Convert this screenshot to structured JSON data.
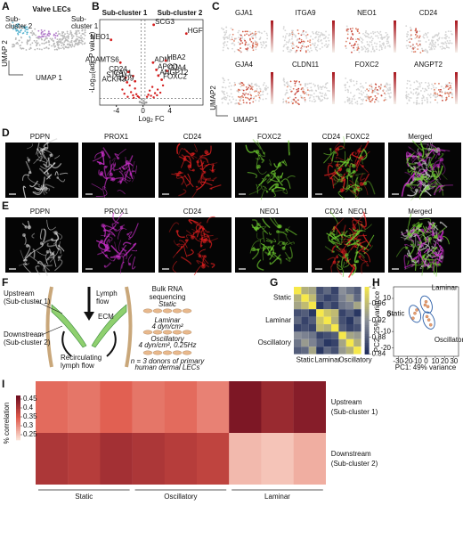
{
  "letters": [
    "A",
    "B",
    "C",
    "D",
    "E",
    "F",
    "G",
    "H",
    "I"
  ],
  "A": {
    "title": "Valve LECs",
    "sub2": [
      "Sub-",
      "cluster 2"
    ],
    "sub1": [
      "Sub-",
      "cluster 1"
    ],
    "xlabel": "UMAP 1",
    "ylabel": "UMAP 2"
  },
  "B": {
    "left_title": "Sub-cluster 1",
    "right_title": "Sub-cluster 2",
    "ylabel": [
      "-Log",
      "10",
      "(adj. P value)"
    ],
    "xlabel": [
      "Log",
      "2",
      " FC"
    ],
    "xlim": [
      -6.5,
      9
    ],
    "ylim": [
      0,
      16.5
    ],
    "xticks": [
      -4,
      0,
      4
    ],
    "threshold_x": [
      -0.3,
      0.3
    ],
    "threshold_y": 1.3,
    "genes": [
      {
        "name": "NEO1",
        "x": -4.8,
        "y": 12.6
      },
      {
        "name": "ADAMTS6",
        "x": -3.4,
        "y": 8.2
      },
      {
        "name": "CD24",
        "x": -2.2,
        "y": 6.4
      },
      {
        "name": "CAV1",
        "x": -1.5,
        "y": 5.6
      },
      {
        "name": "STC1",
        "x": -2.6,
        "y": 5.3
      },
      {
        "name": "ACKR3",
        "x": -2.4,
        "y": 4.4
      },
      {
        "name": "CD9",
        "x": -1.2,
        "y": 4.6
      },
      {
        "name": "SCG3",
        "x": 1.6,
        "y": 15.5
      },
      {
        "name": "HGF",
        "x": 6.5,
        "y": 13.8
      },
      {
        "name": "ADM",
        "x": 1.5,
        "y": 8.2
      },
      {
        "name": "HBA2",
        "x": 3.4,
        "y": 8.6
      },
      {
        "name": "APOD",
        "x": 2.0,
        "y": 6.8
      },
      {
        "name": "GJA4",
        "x": 3.6,
        "y": 6.6
      },
      {
        "name": "ANGPT2",
        "x": 2.3,
        "y": 5.7
      },
      {
        "name": "FOXC2",
        "x": 2.8,
        "y": 4.9
      }
    ],
    "points": {
      "x": [
        -3.1,
        -2.8,
        -2,
        -1.8,
        -1.5,
        -1.2,
        -1,
        -0.8,
        -0.6,
        0.6,
        0.8,
        1,
        1.2,
        1.4,
        1.8,
        2.2,
        2.6,
        3,
        -0.5,
        0.5,
        -1.4,
        1.6,
        -2.3,
        2.1,
        -0.1,
        0.1,
        -0.2,
        0.2
      ],
      "y": [
        3,
        2.2,
        3.8,
        2.5,
        1.9,
        3.2,
        2.1,
        1.7,
        1.5,
        1.6,
        2,
        2.8,
        1.8,
        3.5,
        2.3,
        3,
        2.4,
        3.8,
        0.6,
        0.5,
        1.4,
        1.5,
        1.6,
        1.9,
        0.4,
        0.8,
        1.1,
        0.3
      ]
    }
  },
  "C": {
    "genes": [
      "GJA1",
      "ITGA9",
      "NEO1",
      "CD24",
      "GJA4",
      "CLDN11",
      "FOXC2",
      "ANGPT2"
    ],
    "ylabel": "UMAP2",
    "xlabel": "UMAP1"
  },
  "D": {
    "labels": [
      [
        {
          "text": "PDPN",
          "color": "#aaaaaa"
        }
      ],
      [
        {
          "text": "PROX1",
          "color": "#d030d0"
        }
      ],
      [
        {
          "text": "CD24",
          "color": "#e01818"
        }
      ],
      [
        {
          "text": "FOXC2",
          "color": "#6cc02a"
        }
      ],
      [
        {
          "text": "CD24",
          "color": "#e01818"
        },
        {
          "text": "FOXC2",
          "color": "#6cc02a"
        }
      ],
      [
        {
          "text": "Merged",
          "color": "#333333"
        }
      ]
    ]
  },
  "E": {
    "labels": [
      [
        {
          "text": "PDPN",
          "color": "#aaaaaa"
        }
      ],
      [
        {
          "text": "PROX1",
          "color": "#d030d0"
        }
      ],
      [
        {
          "text": "CD24",
          "color": "#e01818"
        }
      ],
      [
        {
          "text": "NEO1",
          "color": "#6cc02a"
        }
      ],
      [
        {
          "text": "CD24",
          "color": "#e01818"
        },
        {
          "text": "NEO1",
          "color": "#6cc02a"
        }
      ],
      [
        {
          "text": "Merged",
          "color": "#333333"
        }
      ]
    ]
  },
  "F": {
    "upstream": [
      "Upstream",
      "(Sub-cluster 1)"
    ],
    "lymph": [
      "Lymph",
      "flow"
    ],
    "ecm": "ECM",
    "downstream": [
      "Downstream",
      "(Sub-cluster 2)"
    ],
    "recirc": [
      "Recirculating",
      "lymph flow"
    ],
    "bulk": [
      "Bulk RNA",
      "sequencing"
    ],
    "static": "Static",
    "laminar": [
      "Laminar",
      "4 dyn/cm²"
    ],
    "oscillatory": [
      "Oscillatory",
      "4 dyn/cm², 0.25Hz"
    ],
    "donors": [
      "n = 3 donors of primary",
      "human dermal LECs"
    ]
  },
  "G": {
    "labels": [
      "Static",
      "Laminar",
      "Oscillatory"
    ],
    "clim": [
      0.84,
      1
    ],
    "cticks": [
      1,
      0.96,
      0.92,
      0.88,
      0.84
    ],
    "values": [
      [
        1,
        0.95,
        0.94,
        0.87,
        0.89,
        0.86,
        0.92,
        0.9,
        0.88
      ],
      [
        0.95,
        1,
        0.96,
        0.88,
        0.86,
        0.87,
        0.91,
        0.93,
        0.89
      ],
      [
        0.94,
        0.96,
        1,
        0.85,
        0.88,
        0.86,
        0.9,
        0.91,
        0.94
      ],
      [
        0.87,
        0.88,
        0.85,
        1,
        0.97,
        0.96,
        0.86,
        0.88,
        0.85
      ],
      [
        0.89,
        0.86,
        0.88,
        0.97,
        1,
        0.95,
        0.87,
        0.85,
        0.89
      ],
      [
        0.86,
        0.87,
        0.86,
        0.96,
        0.95,
        1,
        0.88,
        0.86,
        0.87
      ],
      [
        0.92,
        0.91,
        0.9,
        0.86,
        0.87,
        0.88,
        1,
        0.94,
        0.93
      ],
      [
        0.9,
        0.93,
        0.91,
        0.88,
        0.85,
        0.86,
        0.94,
        1,
        0.95
      ],
      [
        0.88,
        0.89,
        0.94,
        0.85,
        0.89,
        0.87,
        0.93,
        0.95,
        1
      ]
    ]
  },
  "H": {
    "xlabel": "PC1: 49% variance",
    "ylabel": "PC2: 25% variance",
    "xlim": [
      -35,
      35
    ],
    "ylim": [
      -25,
      17
    ],
    "xticks": [
      -30,
      -20,
      -10,
      0,
      10,
      20,
      30
    ],
    "yticks": [
      -20,
      -10,
      0,
      10
    ],
    "groups": [
      {
        "name": "Static",
        "color": "#e8a070",
        "x": [
          -12,
          -10,
          -14
        ],
        "y": [
          1,
          3,
          -2
        ]
      },
      {
        "name": "Laminar",
        "color": "#e8a070",
        "x": [
          0,
          2,
          -1
        ],
        "y": [
          8,
          5,
          6
        ]
      },
      {
        "name": "Oscillatory",
        "color": "#e8a070",
        "x": [
          3,
          5,
          1
        ],
        "y": [
          -3,
          -6,
          -1
        ]
      }
    ]
  },
  "I": {
    "colorbar_label": "% correlation",
    "rows": [
      [
        "Upstream",
        "(Sub-cluster 1)"
      ],
      [
        "Downstream",
        "(Sub-cluster 2)"
      ]
    ],
    "groups": [
      "Static",
      "Oscillatory",
      "Laminar"
    ],
    "clim": [
      0.22,
      0.47
    ],
    "cticks": [
      0.45,
      0.4,
      0.35,
      0.3,
      0.25
    ],
    "values": [
      [
        0.33,
        0.32,
        0.34,
        0.32,
        0.33,
        0.31,
        0.45,
        0.42,
        0.44
      ],
      [
        0.4,
        0.39,
        0.41,
        0.4,
        0.39,
        0.38,
        0.26,
        0.25,
        0.27
      ]
    ]
  }
}
